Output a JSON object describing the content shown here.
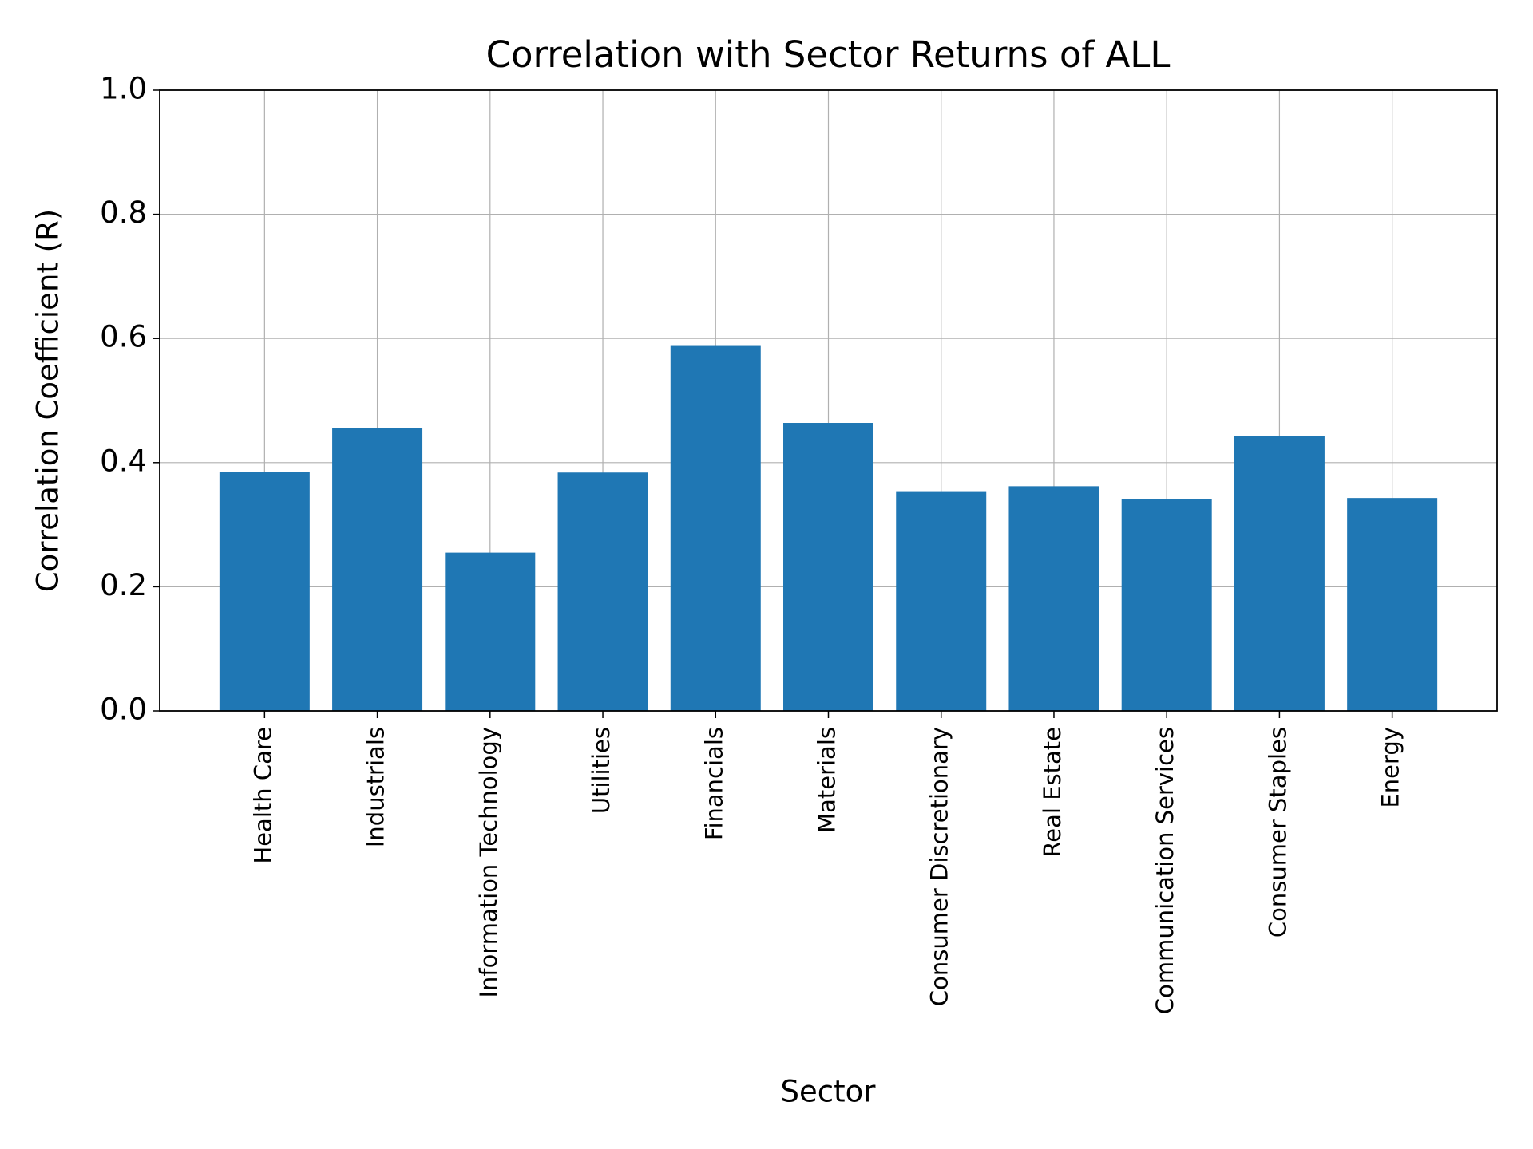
{
  "chart_data": {
    "type": "bar",
    "title": "Correlation with Sector Returns of ALL",
    "x_label": "Sector",
    "y_label": "Correlation Coefficient (R)",
    "categories": [
      "Health Care",
      "Industrials",
      "Information Technology",
      "Utilities",
      "Financials",
      "Materials",
      "Consumer Discretionary",
      "Real Estate",
      "Communication Services",
      "Consumer Staples",
      "Energy"
    ],
    "values": [
      0.385,
      0.456,
      0.255,
      0.384,
      0.588,
      0.464,
      0.354,
      0.362,
      0.341,
      0.443,
      0.343
    ],
    "color": "#1f77b4",
    "ylim": [
      0,
      1
    ],
    "yticks": [
      {
        "value": 0,
        "label": "0.0"
      },
      {
        "value": 0.2,
        "label": "0.2"
      },
      {
        "value": 0.4,
        "label": "0.4"
      },
      {
        "value": 0.6,
        "label": "0.6"
      },
      {
        "value": 0.8,
        "label": "0.8"
      },
      {
        "value": 1,
        "label": "1.0"
      }
    ],
    "grid": true
  }
}
